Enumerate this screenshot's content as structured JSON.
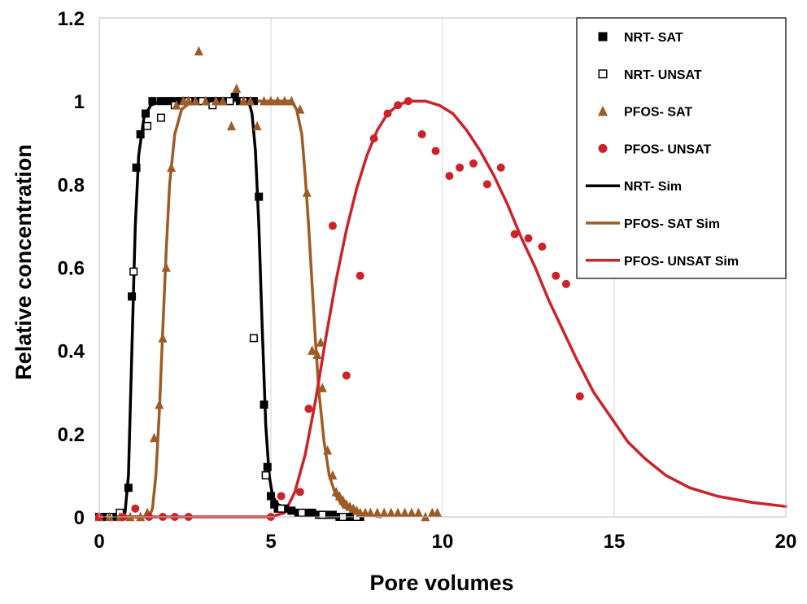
{
  "chart_data": {
    "type": "scatter",
    "title": "",
    "xlabel": "Pore volumes",
    "ylabel": "Relative concentration",
    "xlim": [
      0,
      20
    ],
    "ylim": [
      0,
      1.2
    ],
    "x_ticks": [
      0,
      5,
      10,
      15,
      20
    ],
    "y_ticks": [
      0,
      0.2,
      0.4,
      0.6,
      0.8,
      1,
      1.2
    ],
    "x_tick_labels": [
      "0",
      "5",
      "10",
      "15",
      "20"
    ],
    "y_tick_labels": [
      "0",
      "0.2",
      "0.4",
      "0.6",
      "0.8",
      "1",
      "1.2"
    ],
    "grid": "vertical",
    "legend_position": "top-right",
    "series": [
      {
        "name": "NRT- SAT",
        "kind": "marker",
        "marker": "square-filled",
        "color": "#000000",
        "points": [
          [
            0.0,
            0.0
          ],
          [
            0.2,
            0.0
          ],
          [
            0.4,
            0.0
          ],
          [
            0.6,
            0.0
          ],
          [
            0.85,
            0.07
          ],
          [
            0.95,
            0.53
          ],
          [
            1.08,
            0.84
          ],
          [
            1.2,
            0.92
          ],
          [
            1.35,
            0.97
          ],
          [
            1.55,
            1.0
          ],
          [
            1.8,
            1.0
          ],
          [
            2.0,
            1.0
          ],
          [
            2.2,
            1.0
          ],
          [
            2.4,
            1.0
          ],
          [
            2.6,
            1.0
          ],
          [
            2.8,
            1.0
          ],
          [
            3.0,
            1.0
          ],
          [
            3.2,
            1.0
          ],
          [
            3.4,
            1.0
          ],
          [
            3.6,
            1.0
          ],
          [
            3.8,
            1.0
          ],
          [
            3.95,
            1.01
          ],
          [
            4.1,
            1.0
          ],
          [
            4.3,
            1.0
          ],
          [
            4.5,
            1.0
          ],
          [
            4.65,
            0.77
          ],
          [
            4.8,
            0.27
          ],
          [
            4.9,
            0.12
          ],
          [
            5.0,
            0.05
          ],
          [
            5.1,
            0.03
          ],
          [
            5.2,
            0.02
          ],
          [
            5.4,
            0.02
          ],
          [
            5.6,
            0.015
          ],
          [
            5.8,
            0.01
          ],
          [
            6.0,
            0.01
          ],
          [
            6.2,
            0.01
          ],
          [
            6.4,
            0.005
          ],
          [
            6.6,
            0.005
          ],
          [
            6.8,
            0.005
          ],
          [
            7.0,
            0.0
          ],
          [
            7.2,
            0.0
          ],
          [
            7.4,
            0.0
          ],
          [
            7.6,
            0.0
          ]
        ]
      },
      {
        "name": "NRT- UNSAT",
        "kind": "marker",
        "marker": "square-open",
        "color": "#000000",
        "points": [
          [
            0.0,
            0.0
          ],
          [
            0.3,
            0.0
          ],
          [
            0.6,
            0.01
          ],
          [
            1.0,
            0.59
          ],
          [
            1.4,
            0.94
          ],
          [
            1.8,
            0.96
          ],
          [
            2.2,
            0.99
          ],
          [
            2.6,
            1.0
          ],
          [
            3.0,
            1.0
          ],
          [
            3.3,
            0.99
          ],
          [
            3.8,
            1.0
          ],
          [
            4.2,
            1.0
          ],
          [
            4.5,
            0.43
          ],
          [
            4.85,
            0.1
          ],
          [
            5.3,
            0.02
          ],
          [
            5.9,
            0.01
          ],
          [
            6.5,
            0.005
          ],
          [
            7.1,
            0.0
          ],
          [
            7.5,
            0.0
          ]
        ]
      },
      {
        "name": "PFOS- SAT",
        "kind": "marker",
        "marker": "triangle-filled",
        "color": "#9E5B26",
        "points": [
          [
            0.0,
            0.0
          ],
          [
            0.3,
            0.0
          ],
          [
            0.6,
            0.0
          ],
          [
            0.9,
            0.0
          ],
          [
            1.2,
            0.0
          ],
          [
            1.4,
            0.01
          ],
          [
            1.6,
            0.19
          ],
          [
            1.75,
            0.27
          ],
          [
            1.85,
            0.43
          ],
          [
            1.95,
            0.6
          ],
          [
            2.1,
            0.84
          ],
          [
            2.25,
            0.99
          ],
          [
            2.45,
            1.0
          ],
          [
            2.6,
            1.0
          ],
          [
            2.8,
            1.0
          ],
          [
            2.9,
            1.12
          ],
          [
            3.1,
            1.0
          ],
          [
            3.4,
            1.0
          ],
          [
            3.6,
            1.0
          ],
          [
            3.85,
            0.94
          ],
          [
            4.0,
            1.03
          ],
          [
            4.2,
            1.0
          ],
          [
            4.4,
            1.0
          ],
          [
            4.6,
            0.94
          ],
          [
            4.8,
            1.0
          ],
          [
            5.0,
            1.0
          ],
          [
            5.2,
            1.0
          ],
          [
            5.4,
            1.0
          ],
          [
            5.6,
            1.0
          ],
          [
            5.85,
            0.98
          ],
          [
            6.05,
            0.78
          ],
          [
            6.2,
            0.4
          ],
          [
            6.35,
            0.39
          ],
          [
            6.45,
            0.42
          ],
          [
            6.5,
            0.31
          ],
          [
            6.65,
            0.16
          ],
          [
            6.8,
            0.1
          ],
          [
            6.9,
            0.06
          ],
          [
            7.0,
            0.05
          ],
          [
            7.1,
            0.04
          ],
          [
            7.2,
            0.03
          ],
          [
            7.3,
            0.025
          ],
          [
            7.4,
            0.02
          ],
          [
            7.5,
            0.015
          ],
          [
            7.6,
            0.01
          ],
          [
            7.75,
            0.01
          ],
          [
            7.9,
            0.01
          ],
          [
            8.1,
            0.01
          ],
          [
            8.3,
            0.01
          ],
          [
            8.5,
            0.01
          ],
          [
            8.7,
            0.01
          ],
          [
            8.9,
            0.01
          ],
          [
            9.1,
            0.01
          ],
          [
            9.3,
            0.01
          ],
          [
            9.5,
            0.0
          ],
          [
            9.7,
            0.01
          ],
          [
            9.85,
            0.01
          ]
        ]
      },
      {
        "name": "PFOS- UNSAT",
        "kind": "marker",
        "marker": "circle-filled",
        "color": "#CC2229",
        "points": [
          [
            0.0,
            0.0
          ],
          [
            0.7,
            0.0
          ],
          [
            1.05,
            0.02
          ],
          [
            1.45,
            0.0
          ],
          [
            1.85,
            0.0
          ],
          [
            2.2,
            0.0
          ],
          [
            2.6,
            0.0
          ],
          [
            5.0,
            0.0
          ],
          [
            5.3,
            0.05
          ],
          [
            5.85,
            0.06
          ],
          [
            6.1,
            0.26
          ],
          [
            6.8,
            0.7
          ],
          [
            7.2,
            0.34
          ],
          [
            7.6,
            0.58
          ],
          [
            8.0,
            0.91
          ],
          [
            8.4,
            0.97
          ],
          [
            8.7,
            0.99
          ],
          [
            9.0,
            1.0
          ],
          [
            9.4,
            0.92
          ],
          [
            9.8,
            0.88
          ],
          [
            10.2,
            0.82
          ],
          [
            10.5,
            0.84
          ],
          [
            10.9,
            0.85
          ],
          [
            11.3,
            0.8
          ],
          [
            11.7,
            0.84
          ],
          [
            12.1,
            0.68
          ],
          [
            12.5,
            0.67
          ],
          [
            12.9,
            0.65
          ],
          [
            13.3,
            0.58
          ],
          [
            13.6,
            0.56
          ],
          [
            14.0,
            0.29
          ]
        ]
      },
      {
        "name": "NRT- Sim",
        "kind": "line",
        "color": "#000000",
        "points": [
          [
            0.0,
            0.0
          ],
          [
            0.6,
            0.0
          ],
          [
            0.75,
            0.01
          ],
          [
            0.85,
            0.1
          ],
          [
            0.95,
            0.4
          ],
          [
            1.05,
            0.7
          ],
          [
            1.15,
            0.87
          ],
          [
            1.3,
            0.96
          ],
          [
            1.5,
            0.99
          ],
          [
            1.8,
            1.0
          ],
          [
            4.35,
            1.0
          ],
          [
            4.45,
            0.97
          ],
          [
            4.55,
            0.88
          ],
          [
            4.65,
            0.7
          ],
          [
            4.75,
            0.45
          ],
          [
            4.85,
            0.22
          ],
          [
            4.95,
            0.1
          ],
          [
            5.05,
            0.05
          ],
          [
            5.2,
            0.03
          ],
          [
            5.5,
            0.02
          ],
          [
            6.0,
            0.01
          ],
          [
            7.0,
            0.003
          ],
          [
            7.5,
            0.0
          ]
        ]
      },
      {
        "name": "PFOS- SAT Sim",
        "kind": "line",
        "color": "#9E5B26",
        "points": [
          [
            0.0,
            0.0
          ],
          [
            1.45,
            0.0
          ],
          [
            1.55,
            0.02
          ],
          [
            1.65,
            0.1
          ],
          [
            1.75,
            0.25
          ],
          [
            1.85,
            0.45
          ],
          [
            1.95,
            0.64
          ],
          [
            2.05,
            0.8
          ],
          [
            2.2,
            0.92
          ],
          [
            2.4,
            0.98
          ],
          [
            2.7,
            1.0
          ],
          [
            5.6,
            1.0
          ],
          [
            5.75,
            0.98
          ],
          [
            5.9,
            0.92
          ],
          [
            6.0,
            0.82
          ],
          [
            6.1,
            0.7
          ],
          [
            6.2,
            0.56
          ],
          [
            6.3,
            0.42
          ],
          [
            6.4,
            0.3
          ],
          [
            6.55,
            0.18
          ],
          [
            6.7,
            0.1
          ],
          [
            6.9,
            0.05
          ],
          [
            7.1,
            0.025
          ],
          [
            7.4,
            0.012
          ],
          [
            7.8,
            0.005
          ],
          [
            8.2,
            0.0
          ]
        ]
      },
      {
        "name": "PFOS- UNSAT Sim",
        "kind": "line",
        "color": "#CC2229",
        "points": [
          [
            0.0,
            0.0
          ],
          [
            5.0,
            0.0
          ],
          [
            5.4,
            0.01
          ],
          [
            5.7,
            0.06
          ],
          [
            6.0,
            0.15
          ],
          [
            6.3,
            0.28
          ],
          [
            6.6,
            0.43
          ],
          [
            6.9,
            0.57
          ],
          [
            7.2,
            0.69
          ],
          [
            7.5,
            0.79
          ],
          [
            7.8,
            0.87
          ],
          [
            8.1,
            0.93
          ],
          [
            8.4,
            0.97
          ],
          [
            8.7,
            0.99
          ],
          [
            9.0,
            1.0
          ],
          [
            9.5,
            1.0
          ],
          [
            9.9,
            0.99
          ],
          [
            10.3,
            0.97
          ],
          [
            10.7,
            0.93
          ],
          [
            11.1,
            0.88
          ],
          [
            11.5,
            0.82
          ],
          [
            11.9,
            0.75
          ],
          [
            12.3,
            0.67
          ],
          [
            12.7,
            0.6
          ],
          [
            13.1,
            0.52
          ],
          [
            13.5,
            0.45
          ],
          [
            13.9,
            0.38
          ],
          [
            14.4,
            0.3
          ],
          [
            14.9,
            0.24
          ],
          [
            15.4,
            0.18
          ],
          [
            15.9,
            0.14
          ],
          [
            16.5,
            0.1
          ],
          [
            17.2,
            0.07
          ],
          [
            18.0,
            0.05
          ],
          [
            19.0,
            0.035
          ],
          [
            20.0,
            0.025
          ]
        ]
      }
    ]
  }
}
